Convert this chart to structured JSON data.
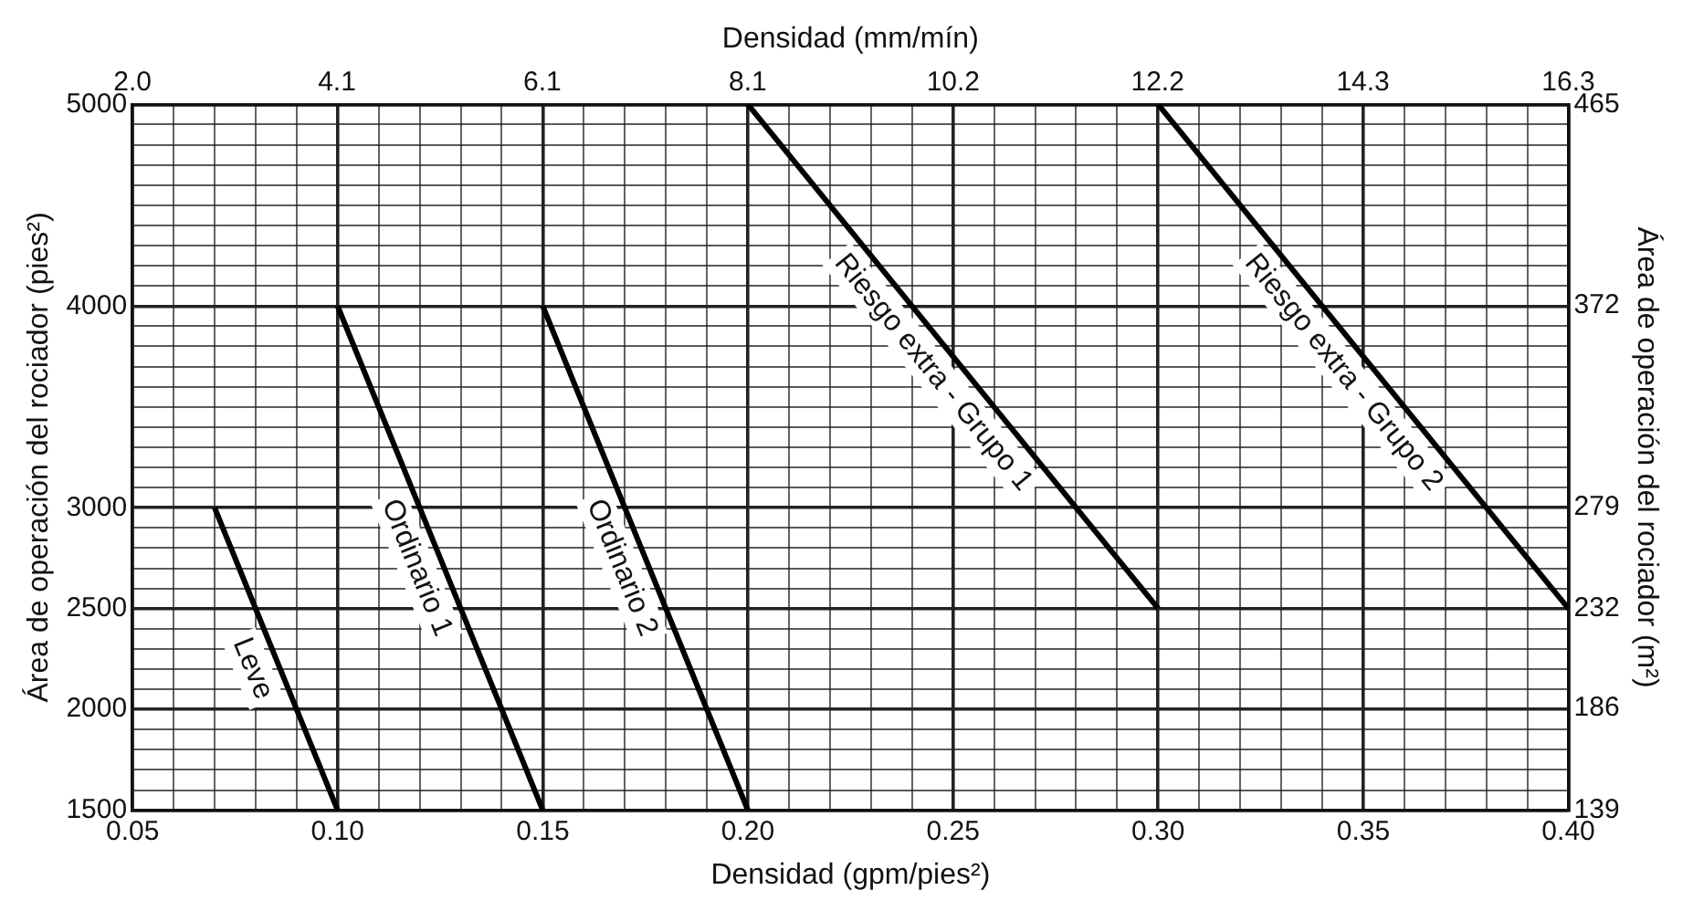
{
  "chart_data": {
    "type": "line",
    "xlabel": "Densidad (gpm/pies²)",
    "x2label": "Densidad (mm/mín)",
    "ylabel": "Área de operación del rociador (pies²)",
    "y2label": "Área de operación del rociador (m²)",
    "xlim": [
      0.05,
      0.4
    ],
    "xticks": [
      {
        "value": 0.05,
        "label": "0.05"
      },
      {
        "value": 0.06,
        "label": null
      },
      {
        "value": 0.07,
        "label": null
      },
      {
        "value": 0.08,
        "label": null
      },
      {
        "value": 0.09,
        "label": null
      },
      {
        "value": 0.1,
        "label": "0.10"
      },
      {
        "value": 0.11,
        "label": null
      },
      {
        "value": 0.12,
        "label": null
      },
      {
        "value": 0.13,
        "label": null
      },
      {
        "value": 0.14,
        "label": null
      },
      {
        "value": 0.15,
        "label": "0.15"
      },
      {
        "value": 0.16,
        "label": null
      },
      {
        "value": 0.17,
        "label": null
      },
      {
        "value": 0.18,
        "label": null
      },
      {
        "value": 0.19,
        "label": null
      },
      {
        "value": 0.2,
        "label": "0.20"
      },
      {
        "value": 0.21,
        "label": null
      },
      {
        "value": 0.22,
        "label": null
      },
      {
        "value": 0.23,
        "label": null
      },
      {
        "value": 0.24,
        "label": null
      },
      {
        "value": 0.25,
        "label": "0.25"
      },
      {
        "value": 0.26,
        "label": null
      },
      {
        "value": 0.27,
        "label": null
      },
      {
        "value": 0.28,
        "label": null
      },
      {
        "value": 0.29,
        "label": null
      },
      {
        "value": 0.3,
        "label": "0.30"
      },
      {
        "value": 0.31,
        "label": null
      },
      {
        "value": 0.32,
        "label": null
      },
      {
        "value": 0.33,
        "label": null
      },
      {
        "value": 0.34,
        "label": null
      },
      {
        "value": 0.35,
        "label": "0.35"
      },
      {
        "value": 0.36,
        "label": null
      },
      {
        "value": 0.37,
        "label": null
      },
      {
        "value": 0.38,
        "label": null
      },
      {
        "value": 0.39,
        "label": null
      },
      {
        "value": 0.4,
        "label": "0.40"
      }
    ],
    "x2lim": [
      2.04,
      16.3
    ],
    "x2ticks": [
      {
        "value": 2.04,
        "label": "2.0"
      },
      {
        "value": 4.07,
        "label": "4.1"
      },
      {
        "value": 6.11,
        "label": "6.1"
      },
      {
        "value": 8.15,
        "label": "8.1"
      },
      {
        "value": 10.19,
        "label": "10.2"
      },
      {
        "value": 12.22,
        "label": "12.2"
      },
      {
        "value": 14.26,
        "label": "14.3"
      },
      {
        "value": 16.3,
        "label": "16.3"
      }
    ],
    "ylim": [
      1500,
      5000
    ],
    "yticks": [
      1500,
      {
        "value": 1600,
        "label": null
      },
      {
        "value": 1700,
        "label": null
      },
      {
        "value": 1800,
        "label": null
      },
      {
        "value": 1900,
        "label": null
      },
      2000,
      {
        "value": 2100,
        "label": null
      },
      {
        "value": 2200,
        "label": null
      },
      {
        "value": 2300,
        "label": null
      },
      {
        "value": 2400,
        "label": null
      },
      2500,
      {
        "value": 2600,
        "label": null
      },
      {
        "value": 2700,
        "label": null
      },
      {
        "value": 2800,
        "label": null
      },
      {
        "value": 2900,
        "label": null
      },
      3000,
      {
        "value": 3100,
        "label": null
      },
      {
        "value": 3200,
        "label": null
      },
      {
        "value": 3300,
        "label": null
      },
      {
        "value": 3400,
        "label": null
      },
      {
        "value": 3500,
        "label": null
      },
      {
        "value": 3600,
        "label": null
      },
      {
        "value": 3700,
        "label": null
      },
      {
        "value": 3800,
        "label": null
      },
      {
        "value": 3900,
        "label": null
      },
      4000,
      {
        "value": 4100,
        "label": null
      },
      {
        "value": 4200,
        "label": null
      },
      {
        "value": 4300,
        "label": null
      },
      {
        "value": 4400,
        "label": null
      },
      {
        "value": 4500,
        "label": null
      },
      {
        "value": 4600,
        "label": null
      },
      {
        "value": 4700,
        "label": null
      },
      {
        "value": 4800,
        "label": null
      },
      {
        "value": 4900,
        "label": null
      },
      5000
    ],
    "y2lim": [
      139,
      465
    ],
    "y2ticks": [
      139,
      186,
      232,
      279,
      372,
      465
    ],
    "grid": true,
    "legend": false,
    "marker": "none",
    "line_style": "solid",
    "series": [
      {
        "name": "Leve",
        "color": "#000000",
        "x": [
          0.07,
          0.1
        ],
        "values": [
          3000,
          1500
        ]
      },
      {
        "name": "Ordinario 1",
        "color": "#000000",
        "x": [
          0.1,
          0.15
        ],
        "values": [
          4000,
          1500
        ]
      },
      {
        "name": "Ordinario 2",
        "color": "#000000",
        "x": [
          0.15,
          0.2
        ],
        "values": [
          4000,
          1500
        ]
      },
      {
        "name": "Riesgo extra - Grupo 1",
        "color": "#000000",
        "x": [
          0.2,
          0.3
        ],
        "values": [
          5000,
          2500
        ]
      },
      {
        "name": "Riesgo extra - Grupo 2",
        "color": "#000000",
        "x": [
          0.3,
          0.4
        ],
        "values": [
          5000,
          2500
        ]
      }
    ]
  }
}
